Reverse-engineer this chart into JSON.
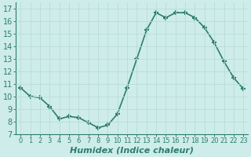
{
  "x": [
    0,
    1,
    2,
    3,
    4,
    5,
    6,
    7,
    8,
    9,
    10,
    11,
    12,
    13,
    14,
    15,
    16,
    17,
    18,
    19,
    20,
    21,
    22,
    23
  ],
  "y": [
    10.7,
    10.0,
    9.9,
    9.2,
    8.2,
    8.4,
    8.3,
    7.9,
    7.5,
    7.7,
    8.6,
    10.7,
    13.0,
    15.3,
    16.7,
    16.3,
    16.7,
    16.7,
    16.3,
    15.5,
    14.3,
    12.8,
    11.5,
    10.6
  ],
  "xlabel": "Humidex (Indice chaleur)",
  "xlim": [
    -0.5,
    23.5
  ],
  "ylim": [
    7,
    17.5
  ],
  "yticks": [
    7,
    8,
    9,
    10,
    11,
    12,
    13,
    14,
    15,
    16,
    17
  ],
  "xticks": [
    0,
    1,
    2,
    3,
    4,
    5,
    6,
    7,
    8,
    9,
    10,
    11,
    12,
    13,
    14,
    15,
    16,
    17,
    18,
    19,
    20,
    21,
    22,
    23
  ],
  "line_color": "#2d7d6e",
  "marker": "+",
  "marker_size": 5,
  "marker_lw": 1.5,
  "line_width": 1.2,
  "bg_color": "#ceecea",
  "grid_color": "#b8ddd9",
  "xlabel_fontsize": 8,
  "tick_fontsize_x": 6,
  "tick_fontsize_y": 7,
  "spine_color": "#2d7d6e"
}
